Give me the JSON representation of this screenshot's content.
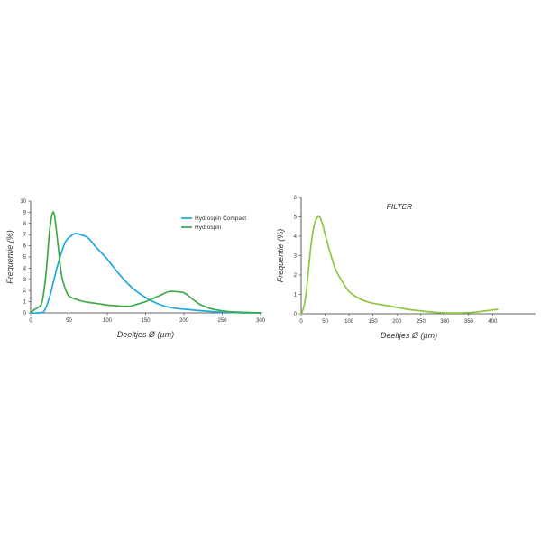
{
  "chart_data": [
    {
      "type": "line",
      "title": "",
      "xlabel": "Deeltjes Ø (µm)",
      "ylabel": "Frequentie (%)",
      "xlim": [
        0,
        300
      ],
      "ylim": [
        0,
        10
      ],
      "xticks": [
        0,
        50,
        100,
        150,
        200,
        250,
        300
      ],
      "yticks": [
        0,
        1,
        2,
        3,
        4,
        5,
        6,
        7,
        8,
        9,
        10
      ],
      "grid": false,
      "legend_position": "top-right",
      "series": [
        {
          "name": "Hydrospin Compact",
          "color": "#1ea8dc",
          "x": [
            0,
            10,
            18,
            25,
            35,
            45,
            55,
            60,
            65,
            75,
            85,
            100,
            115,
            130,
            145,
            160,
            175,
            190,
            205,
            220,
            240,
            260,
            280,
            300
          ],
          "y": [
            0,
            0,
            0.2,
            1.5,
            4.2,
            6.3,
            7.0,
            7.1,
            7.0,
            6.7,
            5.9,
            4.8,
            3.5,
            2.4,
            1.6,
            1.0,
            0.6,
            0.4,
            0.3,
            0.2,
            0.1,
            0.05,
            0,
            0
          ]
        },
        {
          "name": "Hydrospin",
          "color": "#3daa48",
          "x": [
            0,
            5,
            10,
            15,
            20,
            25,
            30,
            35,
            40,
            45,
            50,
            60,
            70,
            80,
            90,
            100,
            110,
            120,
            130,
            140,
            150,
            160,
            170,
            180,
            190,
            200,
            210,
            220,
            230,
            240,
            260,
            280,
            300
          ],
          "y": [
            0,
            0.3,
            0.5,
            1.0,
            3.5,
            7.5,
            9.0,
            6.5,
            3.5,
            2.2,
            1.5,
            1.2,
            1.0,
            0.9,
            0.8,
            0.7,
            0.65,
            0.6,
            0.6,
            0.8,
            1.0,
            1.3,
            1.6,
            1.9,
            1.9,
            1.8,
            1.3,
            0.8,
            0.5,
            0.3,
            0.1,
            0.05,
            0
          ]
        }
      ]
    },
    {
      "type": "line",
      "title": "FILTER",
      "xlabel": "Deeltjes Ø (µm)",
      "ylabel": "Frequentie (%)",
      "xlim": [
        0,
        450
      ],
      "ylim": [
        0,
        6
      ],
      "xticks": [
        0,
        50,
        100,
        150,
        200,
        250,
        300,
        350,
        400
      ],
      "yticks": [
        0,
        1,
        2,
        3,
        4,
        5,
        6
      ],
      "grid": false,
      "series": [
        {
          "color": "#8dc63f",
          "x": [
            0,
            5,
            10,
            15,
            20,
            25,
            30,
            35,
            40,
            45,
            50,
            60,
            70,
            80,
            90,
            100,
            120,
            140,
            160,
            180,
            200,
            225,
            250,
            275,
            300,
            325,
            350,
            375,
            400,
            410
          ],
          "y": [
            0,
            0.3,
            1.0,
            2.2,
            3.4,
            4.3,
            4.8,
            5.0,
            4.95,
            4.6,
            4.1,
            3.2,
            2.4,
            1.9,
            1.5,
            1.15,
            0.8,
            0.6,
            0.5,
            0.42,
            0.33,
            0.22,
            0.15,
            0.08,
            0.05,
            0.04,
            0.06,
            0.12,
            0.2,
            0.22
          ]
        }
      ]
    }
  ]
}
